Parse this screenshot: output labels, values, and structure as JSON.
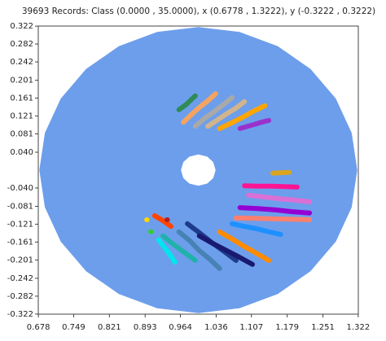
{
  "chart_data": {
    "type": "scatter",
    "title": "39693 Records:  Class (0.0000 , 35.0000), x (0.6778 , 1.3222), y (-0.3222 , 0.3222)",
    "xlim": [
      0.6778,
      1.3222
    ],
    "ylim": [
      -0.3222,
      0.3222
    ],
    "xticks": [
      0.678,
      0.749,
      0.821,
      0.893,
      0.964,
      1.036,
      1.107,
      1.179,
      1.251,
      1.322
    ],
    "yticks": [
      0.322,
      0.282,
      0.242,
      0.201,
      0.161,
      0.121,
      0.081,
      {
        "value": 0.04,
        "label": "0.040"
      },
      {
        "value": -0.04,
        "label": "-0.040"
      },
      -0.081,
      -0.121,
      -0.161,
      -0.201,
      -0.242,
      -0.282,
      -0.322
    ],
    "marker_size": 6,
    "series": [
      {
        "color": "#6d9eeb",
        "fill": true,
        "x": [
          1.32,
          1.309,
          1.277,
          1.226,
          1.16,
          1.083,
          1.0,
          0.917,
          0.84,
          0.774,
          0.723,
          0.691,
          0.68,
          0.691,
          0.723,
          0.774,
          0.84,
          0.917,
          1.0,
          1.083,
          1.16,
          1.226,
          1.277,
          1.309,
          null,
          1.035,
          1.03,
          1.018,
          1.0,
          0.982,
          0.97,
          0.965,
          0.97,
          0.982,
          1.0,
          1.018,
          1.03
        ],
        "y": [
          0,
          0.083,
          0.16,
          0.226,
          0.277,
          0.309,
          0.32,
          0.309,
          0.277,
          0.226,
          0.16,
          0.083,
          0,
          -0.083,
          -0.16,
          -0.226,
          -0.277,
          -0.309,
          -0.32,
          -0.309,
          -0.277,
          -0.226,
          -0.16,
          -0.083,
          null,
          0,
          0.018,
          0.03,
          0.035,
          0.03,
          0.018,
          0,
          -0.018,
          -0.03,
          -0.035,
          -0.03,
          -0.018
        ]
      },
      {
        "color": "#2e8b57",
        "x": [
          0.961,
          0.97,
          0.978,
          0.986,
          0.994
        ],
        "y": [
          0.135,
          0.142,
          0.149,
          0.158,
          0.166
        ]
      },
      {
        "color": "#f4a460",
        "x": [
          0.97,
          0.986,
          1.002,
          1.019,
          1.035
        ],
        "y": [
          0.107,
          0.124,
          0.14,
          0.155,
          0.171
        ]
      },
      {
        "color": "#a9a9a9",
        "x": [
          0.994,
          1.012,
          1.03,
          1.05,
          1.068
        ],
        "y": [
          0.098,
          0.115,
          0.129,
          0.146,
          0.162
        ]
      },
      {
        "color": "#d2b48c",
        "x": [
          1.019,
          1.037,
          1.057,
          1.075,
          1.093
        ],
        "y": [
          0.098,
          0.111,
          0.126,
          0.138,
          0.153
        ]
      },
      {
        "color": "#ffa500",
        "x": [
          1.043,
          1.066,
          1.089,
          1.11,
          1.134
        ],
        "y": [
          0.093,
          0.105,
          0.118,
          0.131,
          0.144
        ]
      },
      {
        "color": "#9932cc",
        "x": [
          1.084,
          1.099,
          1.112,
          1.127,
          1.142
        ],
        "y": [
          0.093,
          0.098,
          0.102,
          0.107,
          0.111
        ]
      },
      {
        "color": "#daa520",
        "x": [
          1.15,
          1.166,
          1.183
        ],
        "y": [
          -0.007,
          -0.006,
          -0.005
        ]
      },
      {
        "color": "#ff1493",
        "x": [
          1.093,
          1.119,
          1.146,
          1.173,
          1.199
        ],
        "y": [
          -0.035,
          -0.036,
          -0.036,
          -0.037,
          -0.038
        ]
      },
      {
        "color": "#da70d6",
        "x": [
          1.101,
          1.132,
          1.163,
          1.193,
          1.224
        ],
        "y": [
          -0.056,
          -0.06,
          -0.064,
          -0.067,
          -0.071
        ]
      },
      {
        "color": "#9400d3",
        "x": [
          1.084,
          1.119,
          1.155,
          1.189,
          1.224
        ],
        "y": [
          -0.084,
          -0.086,
          -0.089,
          -0.093,
          -0.096
        ]
      },
      {
        "color": "#fa8072",
        "x": [
          1.076,
          1.114,
          1.15,
          1.188,
          1.224
        ],
        "y": [
          -0.107,
          -0.108,
          -0.109,
          -0.11,
          -0.111
        ]
      },
      {
        "color": "#1e90ff",
        "x": [
          1.068,
          1.093,
          1.117,
          1.142,
          1.166
        ],
        "y": [
          -0.12,
          -0.126,
          -0.131,
          -0.138,
          -0.144
        ]
      },
      {
        "color": "#ff8c00",
        "x": [
          1.043,
          1.068,
          1.093,
          1.117,
          1.142
        ],
        "y": [
          -0.138,
          -0.154,
          -0.171,
          -0.186,
          -0.202
        ]
      },
      {
        "color": "#1e3a8a",
        "x": [
          0.978,
          1.002,
          1.027,
          1.052,
          1.076
        ],
        "y": [
          -0.12,
          -0.14,
          -0.162,
          -0.182,
          -0.202
        ]
      },
      {
        "color": "#191970",
        "x": [
          1.002,
          1.029,
          1.057,
          1.083,
          1.109
        ],
        "y": [
          -0.147,
          -0.164,
          -0.18,
          -0.195,
          -0.211
        ]
      },
      {
        "color": "#4682b4",
        "x": [
          0.961,
          0.983,
          1.002,
          1.024,
          1.043
        ],
        "y": [
          -0.138,
          -0.158,
          -0.18,
          -0.2,
          -0.22
        ]
      },
      {
        "color": "#20b2aa",
        "x": [
          0.929,
          0.945,
          0.961,
          0.978,
          0.994
        ],
        "y": [
          -0.147,
          -0.162,
          -0.175,
          -0.189,
          -0.202
        ]
      },
      {
        "color": "#00e5ee",
        "x": [
          0.92,
          0.929,
          0.937,
          0.945,
          0.953
        ],
        "y": [
          -0.156,
          -0.169,
          -0.18,
          -0.193,
          -0.206
        ]
      },
      {
        "color": "#ff4500",
        "x": [
          0.912,
          0.929,
          0.945
        ],
        "y": [
          -0.102,
          -0.113,
          -0.126
        ]
      },
      {
        "color": "#ffd700",
        "x": [
          0.896
        ],
        "y": [
          -0.111
        ]
      },
      {
        "color": "#32cd32",
        "x": [
          0.904
        ],
        "y": [
          -0.138
        ]
      },
      {
        "color": "#b22222",
        "x": [
          0.937
        ],
        "y": [
          -0.111
        ]
      }
    ]
  }
}
